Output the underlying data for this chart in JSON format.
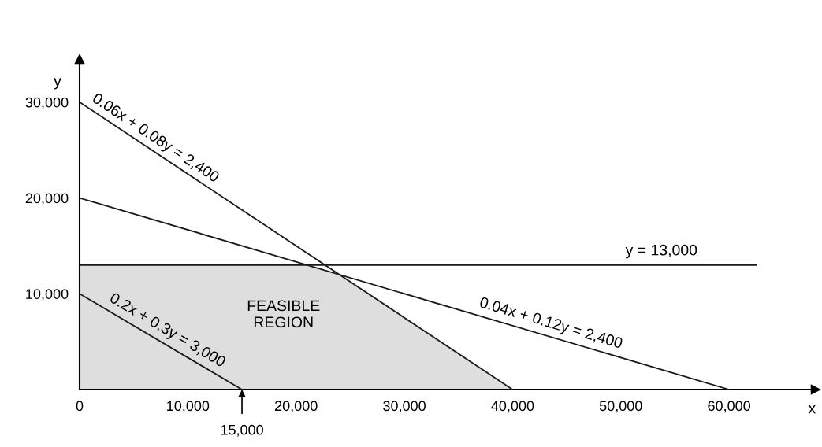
{
  "chart_data": {
    "type": "line",
    "xlabel": "x",
    "ylabel": "y",
    "xlim": [
      0,
      68000
    ],
    "ylim": [
      0,
      34500
    ],
    "xticks": [
      {
        "value": 0,
        "label": "0"
      },
      {
        "value": 10000,
        "label": "10,000"
      },
      {
        "value": 20000,
        "label": "20,000"
      },
      {
        "value": 30000,
        "label": "30,000"
      },
      {
        "value": 40000,
        "label": "40,000"
      },
      {
        "value": 50000,
        "label": "50,000"
      },
      {
        "value": 60000,
        "label": "60,000"
      }
    ],
    "yticks": [
      {
        "value": 10000,
        "label": "10,000"
      },
      {
        "value": 20000,
        "label": "20,000"
      },
      {
        "value": 30000,
        "label": "30,000"
      }
    ],
    "grid": false,
    "marker": "none",
    "line_style": "solid",
    "series": [
      {
        "type": "area",
        "color": "#dedede",
        "x": [
          0,
          0,
          21000,
          24000,
          40000
        ],
        "values": [
          0,
          13000,
          13000,
          12000,
          0
        ]
      },
      {
        "name": "0.06x + 0.08y = 2,400",
        "color": "#1a1a1a",
        "x": [
          0,
          40000
        ],
        "values": [
          30000,
          0
        ]
      },
      {
        "name": "0.04x + 0.12y = 2,400",
        "color": "#1a1a1a",
        "x": [
          0,
          60000
        ],
        "values": [
          20000,
          0
        ]
      },
      {
        "name": "y = 13,000",
        "color": "#1a1a1a",
        "x": [
          0,
          62500
        ],
        "values": [
          13000,
          13000
        ]
      },
      {
        "name": "0.2x + 0.3y = 3,000",
        "color": "#1a1a1a",
        "x": [
          0,
          15000
        ],
        "values": [
          10000,
          0
        ]
      }
    ],
    "annotations": [
      "FEASIBLE\nREGION",
      {
        "text": "15,000",
        "x": 15000,
        "y": 0
      }
    ]
  }
}
